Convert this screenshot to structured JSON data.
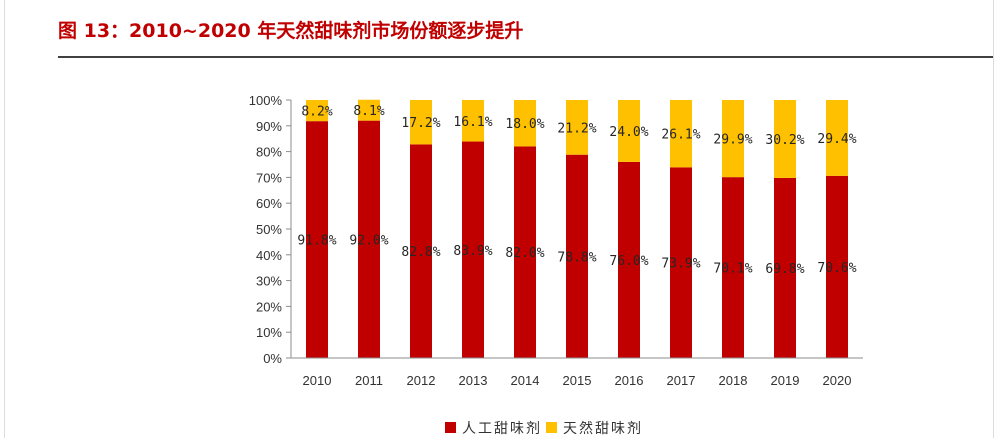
{
  "figure_title": "图 13：2010~2020 年天然甜味剂市场份额逐步提升",
  "colors": {
    "title": "#c00000",
    "artificial": "#c00000",
    "natural": "#ffc000"
  },
  "chart_data": {
    "type": "bar",
    "stacked": true,
    "title": "",
    "xlabel": "",
    "ylabel": "",
    "ylim": [
      0,
      100
    ],
    "y_ticks": [
      "0%",
      "10%",
      "20%",
      "30%",
      "40%",
      "50%",
      "60%",
      "70%",
      "80%",
      "90%",
      "100%"
    ],
    "categories": [
      "2010",
      "2011",
      "2012",
      "2013",
      "2014",
      "2015",
      "2016",
      "2017",
      "2018",
      "2019",
      "2020"
    ],
    "series": [
      {
        "name": "人工甜味剂",
        "color": "#c00000",
        "values": [
          91.8,
          92.0,
          82.8,
          83.9,
          82.0,
          78.8,
          76.0,
          73.9,
          70.1,
          69.8,
          70.6
        ],
        "labels": [
          "91.8%",
          "92.0%",
          "82.8%",
          "83.9%",
          "82.0%",
          "78.8%",
          "76.0%",
          "73.9%",
          "70.1%",
          "69.8%",
          "70.6%"
        ]
      },
      {
        "name": "天然甜味剂",
        "color": "#ffc000",
        "values": [
          8.2,
          8.1,
          17.2,
          16.1,
          18.0,
          21.2,
          24.0,
          26.1,
          29.9,
          30.2,
          29.4
        ],
        "labels": [
          "8.2%",
          "8.1%",
          "17.2%",
          "16.1%",
          "18.0%",
          "21.2%",
          "24.0%",
          "26.1%",
          "29.9%",
          "30.2%",
          "29.4%"
        ]
      }
    ],
    "grid": false,
    "legend": "bottom"
  }
}
